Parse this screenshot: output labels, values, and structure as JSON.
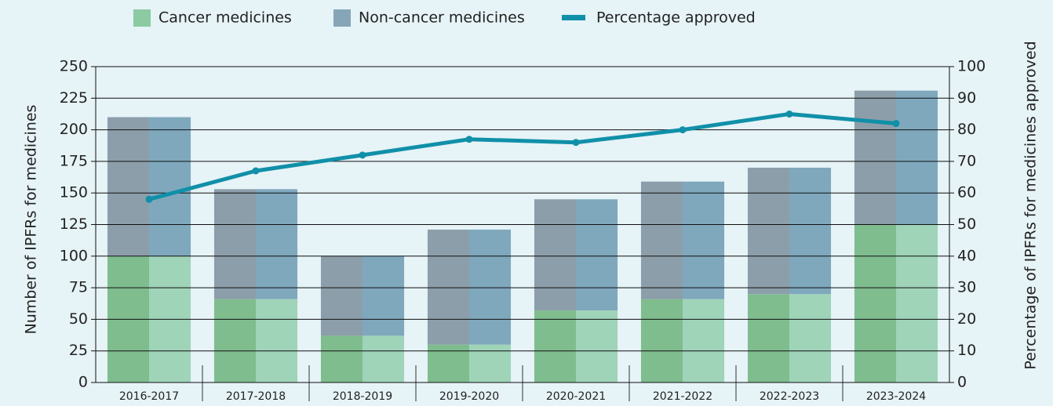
{
  "chart_data": {
    "type": "bar",
    "categories": [
      "2016-2017",
      "2017-2018",
      "2018-2019",
      "2019-2020",
      "2020-2021",
      "2021-2022",
      "2022-2023",
      "2023-2024"
    ],
    "series": [
      {
        "name": "Cancer medicines",
        "color": "#8ccaa3",
        "values": [
          100,
          66,
          37,
          30,
          57,
          66,
          70,
          125
        ]
      },
      {
        "name": "Non-cancer medicines",
        "color": "#86a6b8",
        "values": [
          110,
          87,
          63,
          91,
          88,
          93,
          100,
          106
        ]
      },
      {
        "name": "Percentage approved",
        "color": "#1090a8",
        "type": "line",
        "axis": "y2",
        "values": [
          58,
          67,
          72,
          77,
          76,
          80,
          85,
          82
        ]
      }
    ],
    "stacked": true,
    "ylabel": "Number of IPFRs for medicines",
    "y2label": "Percentage of  IPFRs for medicines approved",
    "ylim": [
      0,
      250
    ],
    "yticks": [
      0,
      25,
      50,
      75,
      100,
      125,
      150,
      175,
      200,
      225,
      250
    ],
    "y2lim": [
      0,
      100
    ],
    "y2ticks": [
      0,
      10,
      20,
      30,
      40,
      50,
      60,
      70,
      80,
      90,
      100
    ],
    "grid": true,
    "legend": "top"
  }
}
